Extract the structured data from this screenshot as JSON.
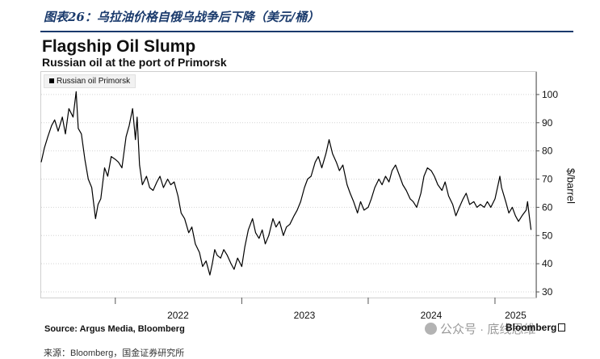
{
  "report": {
    "caption": "图表26：乌拉油价格自俄乌战争后下降（美元/桶）",
    "bottom_note": "来源：Bloomberg，国金证券研究所"
  },
  "footer": {
    "source": "Source: Argus Media, Bloomberg",
    "brand": "Bloomberg",
    "watermark": "公众号 · 底线思维"
  },
  "colors": {
    "line": "#000000",
    "caption": "#1a3a6c",
    "grid": "#d4d4d4"
  },
  "chart_data": {
    "type": "line",
    "title": "Flagship Oil Slump",
    "subtitle": "Russian oil at the port of Primorsk",
    "ylabel": "$/barrel",
    "xlabel": "",
    "legend": {
      "entries": [
        "Russian oil Primorsk"
      ],
      "placement": "top-left"
    },
    "grid": "horizontal",
    "x_tick_labels": [
      "2022",
      "2023",
      "2024",
      "2025"
    ],
    "y_ticks": [
      30,
      40,
      50,
      60,
      70,
      80,
      90,
      100
    ],
    "ylim": [
      28,
      108
    ],
    "xlim": [
      "2021-06-01",
      "2025-04-30"
    ],
    "series": [
      {
        "name": "Russian oil Primorsk",
        "points": [
          [
            "2021-06-01",
            76
          ],
          [
            "2021-06-10",
            81
          ],
          [
            "2021-06-20",
            85
          ],
          [
            "2021-07-01",
            89
          ],
          [
            "2021-07-10",
            91
          ],
          [
            "2021-07-20",
            87
          ],
          [
            "2021-08-01",
            92
          ],
          [
            "2021-08-10",
            86
          ],
          [
            "2021-08-20",
            95
          ],
          [
            "2021-09-01",
            92
          ],
          [
            "2021-09-10",
            101
          ],
          [
            "2021-09-16",
            88
          ],
          [
            "2021-09-25",
            86
          ],
          [
            "2021-10-05",
            77
          ],
          [
            "2021-10-15",
            70
          ],
          [
            "2021-10-25",
            67
          ],
          [
            "2021-11-05",
            56
          ],
          [
            "2021-11-12",
            61
          ],
          [
            "2021-11-20",
            63
          ],
          [
            "2021-12-01",
            74
          ],
          [
            "2021-12-10",
            71
          ],
          [
            "2021-12-20",
            78
          ],
          [
            "2022-01-01",
            77
          ],
          [
            "2022-01-10",
            76
          ],
          [
            "2022-01-20",
            74
          ],
          [
            "2022-02-01",
            85
          ],
          [
            "2022-02-10",
            89
          ],
          [
            "2022-02-20",
            95
          ],
          [
            "2022-02-28",
            84
          ],
          [
            "2022-03-05",
            92
          ],
          [
            "2022-03-12",
            75
          ],
          [
            "2022-03-20",
            68
          ],
          [
            "2022-04-01",
            71
          ],
          [
            "2022-04-10",
            67
          ],
          [
            "2022-04-20",
            66
          ],
          [
            "2022-05-01",
            69
          ],
          [
            "2022-05-10",
            71
          ],
          [
            "2022-05-20",
            67
          ],
          [
            "2022-06-01",
            70
          ],
          [
            "2022-06-10",
            68
          ],
          [
            "2022-06-20",
            69
          ],
          [
            "2022-07-01",
            64
          ],
          [
            "2022-07-10",
            58
          ],
          [
            "2022-07-20",
            56
          ],
          [
            "2022-08-01",
            51
          ],
          [
            "2022-08-10",
            53
          ],
          [
            "2022-08-20",
            47
          ],
          [
            "2022-09-01",
            44
          ],
          [
            "2022-09-10",
            39
          ],
          [
            "2022-09-20",
            41
          ],
          [
            "2022-10-01",
            36
          ],
          [
            "2022-10-08",
            40
          ],
          [
            "2022-10-15",
            45
          ],
          [
            "2022-10-22",
            43
          ],
          [
            "2022-11-01",
            42
          ],
          [
            "2022-11-10",
            45
          ],
          [
            "2022-11-20",
            43
          ],
          [
            "2022-12-01",
            40
          ],
          [
            "2022-12-10",
            38
          ],
          [
            "2022-12-20",
            42
          ],
          [
            "2023-01-01",
            39
          ],
          [
            "2023-01-10",
            46
          ],
          [
            "2023-01-20",
            52
          ],
          [
            "2023-02-01",
            56
          ],
          [
            "2023-02-10",
            51
          ],
          [
            "2023-02-20",
            49
          ],
          [
            "2023-03-01",
            52
          ],
          [
            "2023-03-10",
            47
          ],
          [
            "2023-03-20",
            50
          ],
          [
            "2023-04-01",
            56
          ],
          [
            "2023-04-10",
            53
          ],
          [
            "2023-04-20",
            55
          ],
          [
            "2023-05-01",
            50
          ],
          [
            "2023-05-10",
            53
          ],
          [
            "2023-05-20",
            54
          ],
          [
            "2023-06-01",
            57
          ],
          [
            "2023-06-10",
            59
          ],
          [
            "2023-06-20",
            62
          ],
          [
            "2023-07-01",
            67
          ],
          [
            "2023-07-10",
            70
          ],
          [
            "2023-07-20",
            71
          ],
          [
            "2023-08-01",
            76
          ],
          [
            "2023-08-10",
            78
          ],
          [
            "2023-08-20",
            74
          ],
          [
            "2023-09-01",
            79
          ],
          [
            "2023-09-10",
            84
          ],
          [
            "2023-09-20",
            79
          ],
          [
            "2023-10-01",
            76
          ],
          [
            "2023-10-10",
            73
          ],
          [
            "2023-10-20",
            75
          ],
          [
            "2023-11-01",
            68
          ],
          [
            "2023-11-10",
            65
          ],
          [
            "2023-11-20",
            62
          ],
          [
            "2023-12-01",
            58
          ],
          [
            "2023-12-10",
            62
          ],
          [
            "2023-12-20",
            59
          ],
          [
            "2024-01-01",
            60
          ],
          [
            "2024-01-10",
            63
          ],
          [
            "2024-01-20",
            67
          ],
          [
            "2024-02-01",
            70
          ],
          [
            "2024-02-10",
            68
          ],
          [
            "2024-02-20",
            71
          ],
          [
            "2024-03-01",
            69
          ],
          [
            "2024-03-10",
            73
          ],
          [
            "2024-03-20",
            75
          ],
          [
            "2024-04-01",
            71
          ],
          [
            "2024-04-10",
            68
          ],
          [
            "2024-04-20",
            66
          ],
          [
            "2024-05-01",
            63
          ],
          [
            "2024-05-10",
            62
          ],
          [
            "2024-05-20",
            60
          ],
          [
            "2024-06-01",
            65
          ],
          [
            "2024-06-10",
            71
          ],
          [
            "2024-06-20",
            74
          ],
          [
            "2024-07-01",
            73
          ],
          [
            "2024-07-10",
            71
          ],
          [
            "2024-07-20",
            68
          ],
          [
            "2024-08-01",
            66
          ],
          [
            "2024-08-10",
            69
          ],
          [
            "2024-08-20",
            64
          ],
          [
            "2024-09-01",
            61
          ],
          [
            "2024-09-10",
            57
          ],
          [
            "2024-09-20",
            60
          ],
          [
            "2024-10-01",
            63
          ],
          [
            "2024-10-10",
            65
          ],
          [
            "2024-10-20",
            61
          ],
          [
            "2024-11-01",
            62
          ],
          [
            "2024-11-10",
            60
          ],
          [
            "2024-11-20",
            61
          ],
          [
            "2024-12-01",
            60
          ],
          [
            "2024-12-10",
            62
          ],
          [
            "2024-12-20",
            60
          ],
          [
            "2025-01-01",
            63
          ],
          [
            "2025-01-10",
            68
          ],
          [
            "2025-01-15",
            71
          ],
          [
            "2025-01-20",
            67
          ],
          [
            "2025-02-01",
            62
          ],
          [
            "2025-02-10",
            58
          ],
          [
            "2025-02-20",
            60
          ],
          [
            "2025-03-01",
            57
          ],
          [
            "2025-03-10",
            55
          ],
          [
            "2025-03-20",
            57
          ],
          [
            "2025-04-01",
            59
          ],
          [
            "2025-04-05",
            62
          ],
          [
            "2025-04-10",
            57
          ],
          [
            "2025-04-15",
            52
          ]
        ]
      }
    ]
  }
}
